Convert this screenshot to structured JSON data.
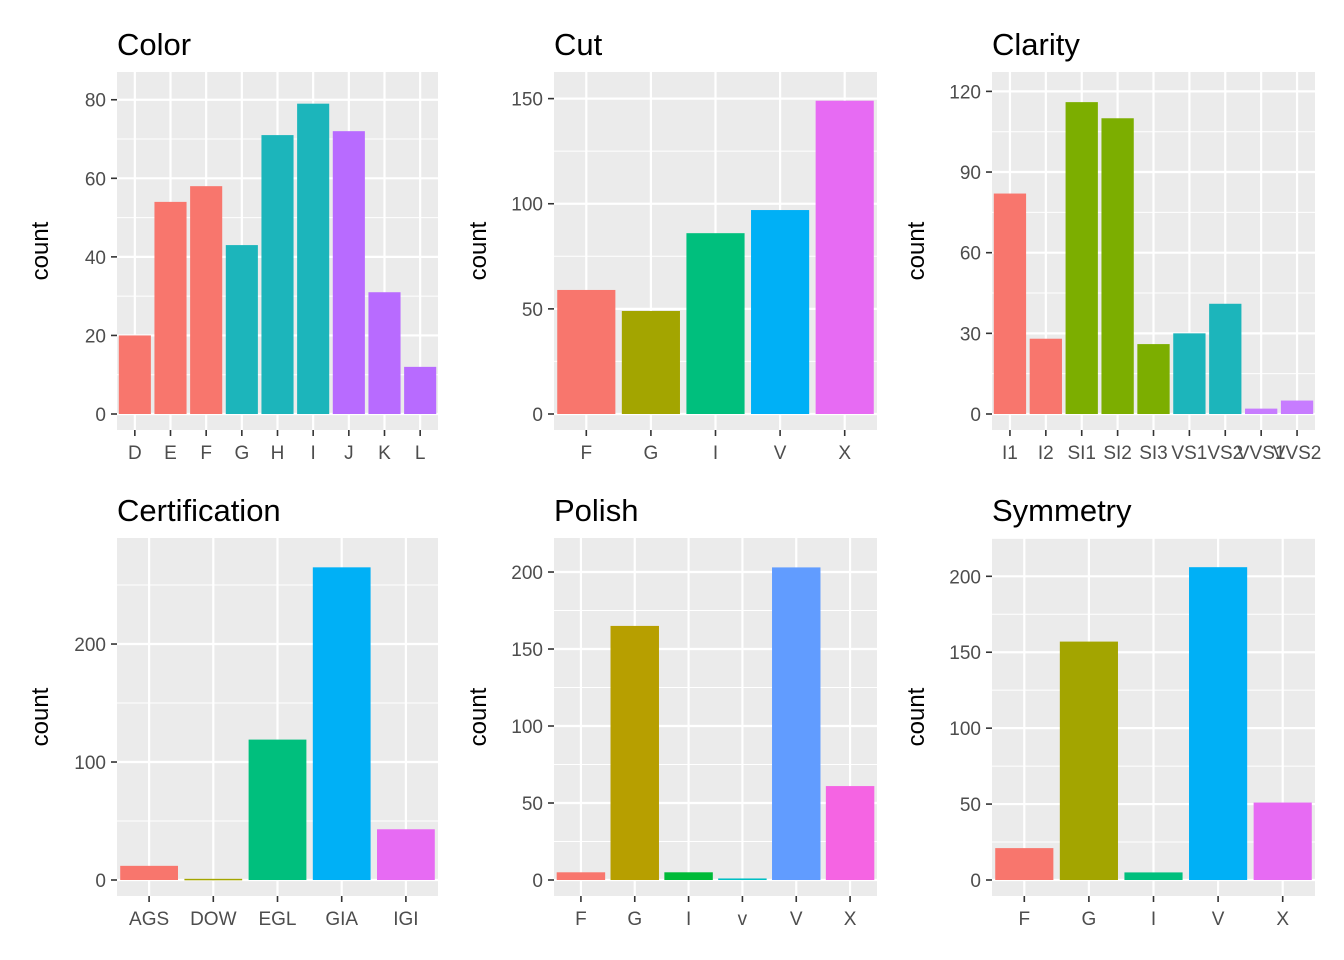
{
  "chart_data": [
    {
      "type": "bar",
      "title": "Color",
      "xlabel": "",
      "ylabel": "count",
      "categories": [
        "D",
        "E",
        "F",
        "G",
        "H",
        "I",
        "J",
        "K",
        "L"
      ],
      "values": [
        20,
        54,
        58,
        43,
        71,
        79,
        72,
        31,
        12
      ],
      "colors": [
        "#F8766D",
        "#F8766D",
        "#F8766D",
        "#1CB5BB",
        "#1CB5BB",
        "#1CB5BB",
        "#B86BFF",
        "#B86BFF",
        "#B86BFF"
      ],
      "ylim": [
        0,
        83.5
      ],
      "yticks": [
        0,
        20,
        40,
        60,
        80
      ],
      "grid": true
    },
    {
      "type": "bar",
      "title": "Cut",
      "xlabel": "",
      "ylabel": "count",
      "categories": [
        "F",
        "G",
        "I",
        "V",
        "X"
      ],
      "values": [
        59,
        49,
        86,
        97,
        149
      ],
      "colors": [
        "#F8766D",
        "#A3A500",
        "#00BF7D",
        "#00B0F6",
        "#E76BF3"
      ],
      "ylim": [
        0,
        156
      ],
      "yticks": [
        0,
        50,
        100,
        150
      ],
      "grid": true
    },
    {
      "type": "bar",
      "title": "Clarity",
      "xlabel": "",
      "ylabel": "count",
      "categories": [
        "I1",
        "I2",
        "SI1",
        "SI2",
        "SI3",
        "VS1",
        "VS2",
        "VVS1",
        "VVS2"
      ],
      "values": [
        82,
        28,
        116,
        110,
        26,
        30,
        41,
        2,
        5
      ],
      "colors": [
        "#F8766D",
        "#F8766D",
        "#7CAE00",
        "#7CAE00",
        "#7CAE00",
        "#1CB5BB",
        "#1CB5BB",
        "#C77CFF",
        "#C77CFF"
      ],
      "ylim": [
        0,
        122
      ],
      "yticks": [
        0,
        30,
        60,
        90,
        120
      ],
      "grid": true
    },
    {
      "type": "bar",
      "title": "Certification",
      "xlabel": "",
      "ylabel": "count",
      "categories": [
        "AGS",
        "DOW",
        "EGL",
        "GIA",
        "IGI"
      ],
      "values": [
        12,
        1,
        119,
        265,
        43
      ],
      "colors": [
        "#F8766D",
        "#A3A500",
        "#00BF7D",
        "#00B0F6",
        "#E76BF3"
      ],
      "ylim": [
        0,
        278
      ],
      "yticks": [
        0,
        100,
        200
      ],
      "grid": true
    },
    {
      "type": "bar",
      "title": "Polish",
      "xlabel": "",
      "ylabel": "count",
      "categories": [
        "F",
        "G",
        "I",
        "v",
        "V",
        "X"
      ],
      "values": [
        5,
        165,
        5,
        1,
        203,
        61
      ],
      "colors": [
        "#F8766D",
        "#B79F00",
        "#00BA38",
        "#00BFC4",
        "#619CFF",
        "#F564E3"
      ],
      "ylim": [
        0,
        213
      ],
      "yticks": [
        0,
        50,
        100,
        150,
        200
      ],
      "grid": true
    },
    {
      "type": "bar",
      "title": "Symmetry",
      "xlabel": "",
      "ylabel": "count",
      "categories": [
        "F",
        "G",
        "I",
        "V",
        "X"
      ],
      "values": [
        21,
        157,
        5,
        206,
        51
      ],
      "colors": [
        "#F8766D",
        "#A3A500",
        "#00BF7D",
        "#00B0F6",
        "#E76BF3"
      ],
      "ylim": [
        0,
        216
      ],
      "yticks": [
        0,
        50,
        100,
        150,
        200
      ],
      "grid": true
    }
  ]
}
